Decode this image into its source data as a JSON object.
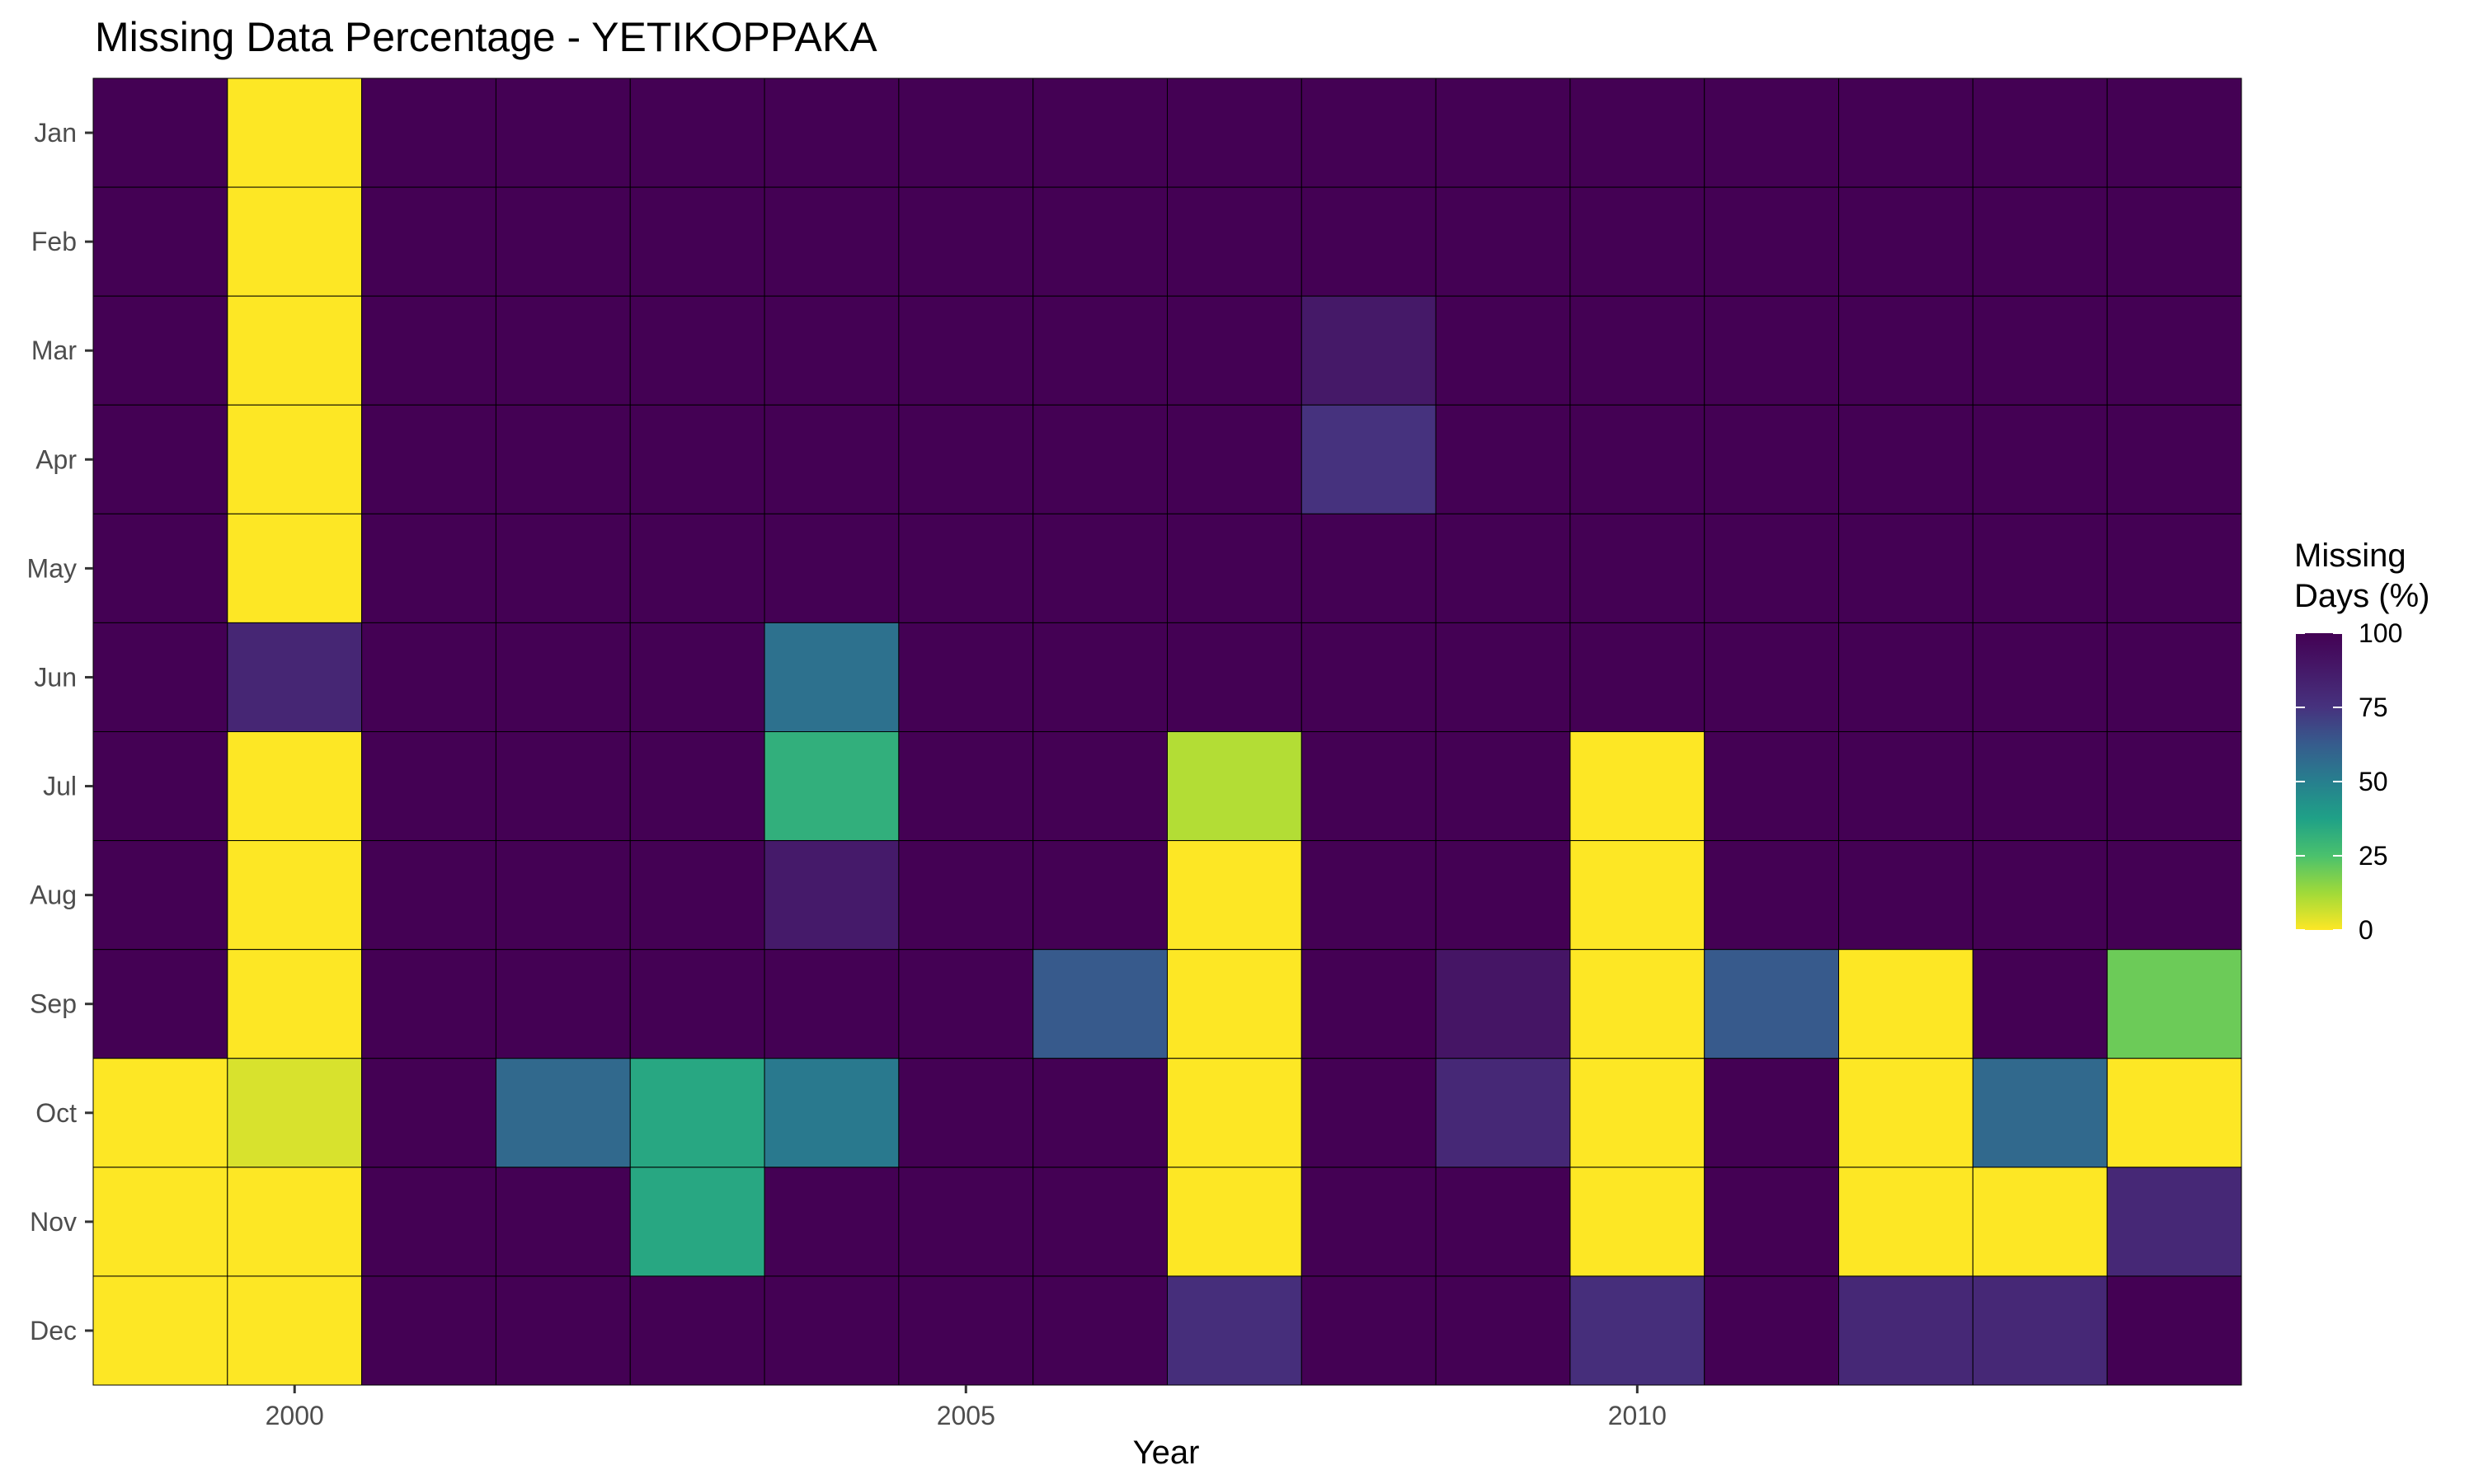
{
  "chart_data": {
    "type": "heatmap",
    "title": "Missing Data Percentage - YETIKOPPAKA",
    "xlabel": "Year",
    "ylabel": "",
    "x_ticks": [
      "2000",
      "2005",
      "2010"
    ],
    "x_tick_values": [
      2000,
      2005,
      2010
    ],
    "years": [
      1999,
      2000,
      2001,
      2002,
      2003,
      2004,
      2005,
      2006,
      2007,
      2008,
      2009,
      2010,
      2011,
      2012,
      2013,
      2014
    ],
    "months": [
      "Jan",
      "Feb",
      "Mar",
      "Apr",
      "May",
      "Jun",
      "Jul",
      "Aug",
      "Sep",
      "Oct",
      "Nov",
      "Dec"
    ],
    "values": [
      [
        100,
        0,
        100,
        100,
        100,
        100,
        100,
        100,
        100,
        100,
        100,
        100,
        100,
        100,
        100,
        100
      ],
      [
        100,
        0,
        100,
        100,
        100,
        100,
        100,
        100,
        100,
        100,
        100,
        100,
        100,
        100,
        100,
        100
      ],
      [
        100,
        0,
        100,
        100,
        100,
        100,
        100,
        100,
        100,
        88,
        100,
        100,
        100,
        100,
        100,
        100
      ],
      [
        100,
        0,
        100,
        100,
        100,
        100,
        100,
        100,
        100,
        75,
        100,
        100,
        100,
        100,
        100,
        100
      ],
      [
        100,
        0,
        100,
        100,
        100,
        100,
        100,
        100,
        100,
        100,
        100,
        100,
        100,
        100,
        100,
        100
      ],
      [
        100,
        81,
        100,
        100,
        100,
        55,
        100,
        100,
        100,
        100,
        100,
        100,
        100,
        100,
        100,
        100
      ],
      [
        100,
        0,
        100,
        100,
        100,
        32,
        100,
        100,
        10,
        100,
        100,
        0,
        100,
        100,
        100,
        100
      ],
      [
        100,
        0,
        100,
        100,
        100,
        87,
        100,
        100,
        0,
        100,
        100,
        0,
        100,
        100,
        100,
        100
      ],
      [
        100,
        0,
        100,
        100,
        100,
        100,
        100,
        63,
        0,
        100,
        90,
        0,
        63,
        0,
        100,
        20
      ],
      [
        0,
        5,
        100,
        58,
        35,
        52,
        100,
        100,
        0,
        100,
        80,
        0,
        100,
        0,
        58,
        0
      ],
      [
        0,
        0,
        100,
        100,
        35,
        100,
        100,
        100,
        0,
        100,
        100,
        0,
        100,
        0,
        0,
        80
      ],
      [
        0,
        0,
        100,
        100,
        100,
        100,
        100,
        100,
        77,
        100,
        100,
        77,
        100,
        80,
        80,
        100
      ]
    ],
    "colorscale": "viridis",
    "colorscale_reversed": true,
    "colorbar": {
      "title_lines": [
        "Missing",
        "Days (%)"
      ],
      "range": [
        0,
        100
      ],
      "ticks": [
        0,
        25,
        50,
        75,
        100
      ]
    },
    "grid": false,
    "legend_position": "right"
  }
}
